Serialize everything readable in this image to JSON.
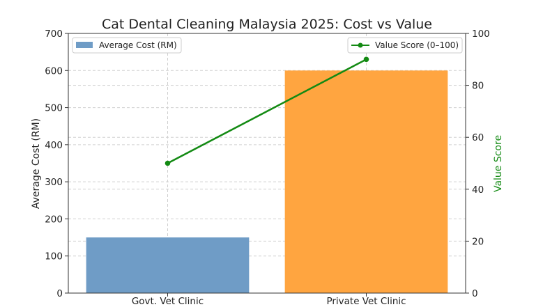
{
  "chart_data": {
    "type": "bar",
    "title": "Cat Dental Cleaning Malaysia 2025: Cost vs Value",
    "categories": [
      "Govt. Vet Clinic",
      "Private Vet Clinic"
    ],
    "bar_series": {
      "name": "Average Cost (RM)",
      "values": [
        150,
        600
      ],
      "colors": [
        "#6f9cc6",
        "#ffa540"
      ]
    },
    "line_series": {
      "name": "Value Score (0–100)",
      "values": [
        50,
        90
      ],
      "color": "#138a13"
    },
    "ylabel_left": "Average Cost (RM)",
    "ylabel_right": "Value Score",
    "ylim_left": [
      0,
      700
    ],
    "ylim_right": [
      0,
      100
    ],
    "yticks_left": [
      0,
      100,
      200,
      300,
      400,
      500,
      600,
      700
    ],
    "yticks_right": [
      0,
      20,
      40,
      60,
      80,
      100
    ],
    "grid": true,
    "legend_bar_position": "top-left",
    "legend_line_position": "top-right",
    "right_axis_color": "#138a13"
  }
}
